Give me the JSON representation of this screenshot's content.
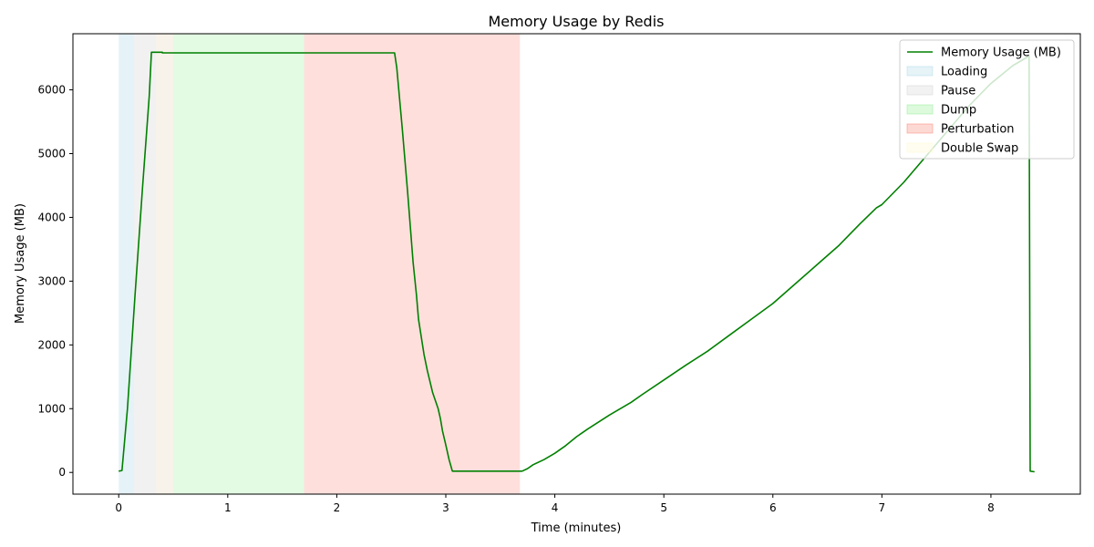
{
  "chart_data": {
    "type": "line",
    "title": "Memory Usage by Redis",
    "xlabel": "Time (minutes)",
    "ylabel": "Memory Usage (MB)",
    "xlim": [
      -0.42,
      8.82
    ],
    "ylim": [
      -340,
      6880
    ],
    "x_ticks": [
      0,
      1,
      2,
      3,
      4,
      5,
      6,
      7,
      8
    ],
    "y_ticks": [
      0,
      1000,
      2000,
      3000,
      4000,
      5000,
      6000
    ],
    "grid": false,
    "legend_position": "top-right",
    "series": [
      {
        "name": "Memory Usage (MB)",
        "color": "#008000",
        "x": [
          0.0,
          0.03,
          0.08,
          0.15,
          0.22,
          0.28,
          0.3,
          0.4,
          0.4,
          0.6,
          1.0,
          1.5,
          2.0,
          2.5,
          2.53,
          2.55,
          2.6,
          2.65,
          2.7,
          2.73,
          2.75,
          2.8,
          2.83,
          2.88,
          2.93,
          2.95,
          2.97,
          3.0,
          3.03,
          3.06,
          3.2,
          3.5,
          3.7,
          3.75,
          3.8,
          3.9,
          4.0,
          4.1,
          4.2,
          4.3,
          4.5,
          4.7,
          4.8,
          5.0,
          5.2,
          5.4,
          5.6,
          5.8,
          6.0,
          6.2,
          6.4,
          6.6,
          6.8,
          6.95,
          7.0,
          7.2,
          7.4,
          7.6,
          7.8,
          8.0,
          8.2,
          8.35,
          8.36,
          8.4
        ],
        "y": [
          20,
          30,
          1000,
          2800,
          4500,
          5900,
          6590,
          6590,
          6580,
          6580,
          6580,
          6580,
          6580,
          6580,
          6580,
          6350,
          5400,
          4400,
          3300,
          2800,
          2400,
          1850,
          1600,
          1250,
          1000,
          850,
          650,
          430,
          200,
          20,
          20,
          20,
          20,
          60,
          120,
          200,
          300,
          420,
          560,
          680,
          900,
          1100,
          1220,
          1450,
          1680,
          1900,
          2150,
          2400,
          2650,
          2950,
          3250,
          3550,
          3900,
          4150,
          4200,
          4550,
          4950,
          5350,
          5750,
          6100,
          6380,
          6530,
          20,
          10
        ]
      }
    ],
    "regions": [
      {
        "label": "Loading",
        "start": 0.0,
        "end": 0.14,
        "color": "#add8e6",
        "opacity": 0.32
      },
      {
        "label": "Pause",
        "start": 0.14,
        "end": 0.34,
        "color": "#d3d3d3",
        "opacity": 0.32
      },
      {
        "label": "Pause",
        "start": 0.34,
        "end": 0.5,
        "color": "#e8dcc4",
        "opacity": 0.35
      },
      {
        "label": "Dump",
        "start": 0.5,
        "end": 1.7,
        "color": "#90ee90",
        "opacity": 0.25
      },
      {
        "label": "Perturbation",
        "start": 1.7,
        "end": 3.68,
        "color": "#fa8072",
        "opacity": 0.25
      }
    ],
    "legend": [
      {
        "label": "Memory Usage (MB)",
        "kind": "line",
        "color": "#008000"
      },
      {
        "label": "Loading",
        "kind": "patch",
        "color": "#add8e6",
        "opacity": 0.3
      },
      {
        "label": "Pause",
        "kind": "patch",
        "color": "#d3d3d3",
        "opacity": 0.3
      },
      {
        "label": "Dump",
        "kind": "patch",
        "color": "#90ee90",
        "opacity": 0.3
      },
      {
        "label": "Perturbation",
        "kind": "patch",
        "color": "#fa8072",
        "opacity": 0.3
      },
      {
        "label": "Double Swap",
        "kind": "patch",
        "color": "#fffacd",
        "opacity": 0.3
      }
    ]
  }
}
